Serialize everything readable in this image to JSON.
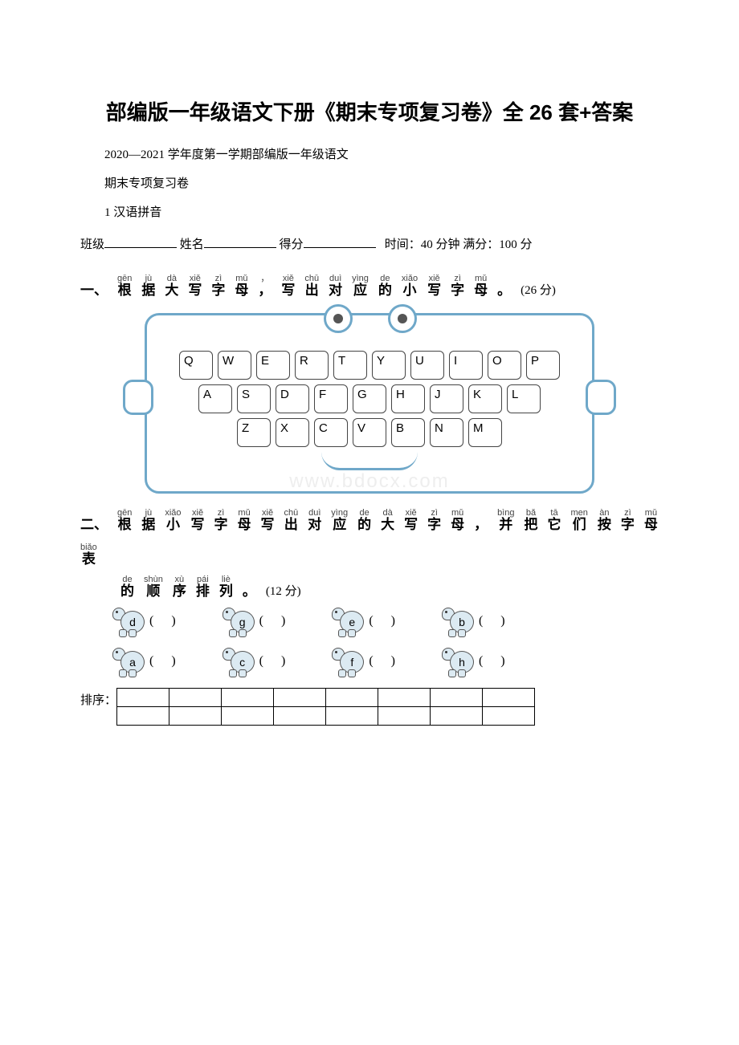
{
  "title": "部编版一年级语文下册《期末专项复习卷》全 26 套+答案",
  "intro_lines": [
    "2020—2021 学年度第一学期部编版一年级语文",
    "期末专项复习卷",
    "1 汉语拼音"
  ],
  "fill": {
    "class_label": "班级",
    "name_label": "姓名",
    "score_label": "得分",
    "time_label": "时间：40 分钟 满分：100 分"
  },
  "q1": {
    "num": "一、",
    "chars": [
      {
        "py": "gēn",
        "hz": "根"
      },
      {
        "py": "jù",
        "hz": "据"
      },
      {
        "py": "dà",
        "hz": "大"
      },
      {
        "py": "xiě",
        "hz": "写"
      },
      {
        "py": "zì",
        "hz": "字"
      },
      {
        "py": "mǔ",
        "hz": "母"
      },
      {
        "py": "，",
        "hz": "，"
      },
      {
        "py": "xiě",
        "hz": "写"
      },
      {
        "py": "chū",
        "hz": "出"
      },
      {
        "py": "duì",
        "hz": "对"
      },
      {
        "py": "yìng",
        "hz": "应"
      },
      {
        "py": "de",
        "hz": "的"
      },
      {
        "py": "xiǎo",
        "hz": "小"
      },
      {
        "py": "xiě",
        "hz": "写"
      },
      {
        "py": "zì",
        "hz": "字"
      },
      {
        "py": "mǔ",
        "hz": "母"
      },
      {
        "py": "",
        "hz": "。"
      }
    ],
    "score": "(26 分)",
    "rows": [
      [
        "Q",
        "W",
        "E",
        "R",
        "T",
        "Y",
        "U",
        "I",
        "O",
        "P"
      ],
      [
        "A",
        "S",
        "D",
        "F",
        "G",
        "H",
        "J",
        "K",
        "L"
      ],
      [
        "Z",
        "X",
        "C",
        "V",
        "B",
        "N",
        "M"
      ]
    ]
  },
  "q2": {
    "num": "二、",
    "chars_l1": [
      {
        "py": "gēn",
        "hz": "根"
      },
      {
        "py": "jù",
        "hz": "据"
      },
      {
        "py": "xiǎo",
        "hz": "小"
      },
      {
        "py": "xiě",
        "hz": "写"
      },
      {
        "py": "zì",
        "hz": "字"
      },
      {
        "py": "mǔ",
        "hz": "母"
      },
      {
        "py": "xiě",
        "hz": "写"
      },
      {
        "py": "chū",
        "hz": "出"
      },
      {
        "py": "duì",
        "hz": "对"
      },
      {
        "py": "yìng",
        "hz": "应"
      },
      {
        "py": "de",
        "hz": "的"
      },
      {
        "py": "dà",
        "hz": "大"
      },
      {
        "py": "xiě",
        "hz": "写"
      },
      {
        "py": "zì",
        "hz": "字"
      },
      {
        "py": "mǔ",
        "hz": "母"
      },
      {
        "py": "",
        "hz": "，"
      },
      {
        "py": "bìng",
        "hz": "并"
      },
      {
        "py": "bǎ",
        "hz": "把"
      },
      {
        "py": "tā",
        "hz": "它"
      },
      {
        "py": "men",
        "hz": "们"
      },
      {
        "py": "àn",
        "hz": "按"
      },
      {
        "py": "zì",
        "hz": "字"
      },
      {
        "py": "mǔ",
        "hz": "母"
      },
      {
        "py": "biǎo",
        "hz": "表"
      }
    ],
    "chars_l2": [
      {
        "py": "de",
        "hz": "的"
      },
      {
        "py": "shùn",
        "hz": "顺"
      },
      {
        "py": "xù",
        "hz": "序"
      },
      {
        "py": "pái",
        "hz": "排"
      },
      {
        "py": "liè",
        "hz": "列"
      },
      {
        "py": "",
        "hz": "。"
      }
    ],
    "score": "(12 分)",
    "turtles_r1": [
      "d",
      "g",
      "e",
      "b"
    ],
    "turtles_r2": [
      "a",
      "c",
      "f",
      "h"
    ],
    "sort_label": "排序：",
    "sort_cols": 8,
    "sort_rows": 2
  },
  "watermark": "www.bdocx.com"
}
